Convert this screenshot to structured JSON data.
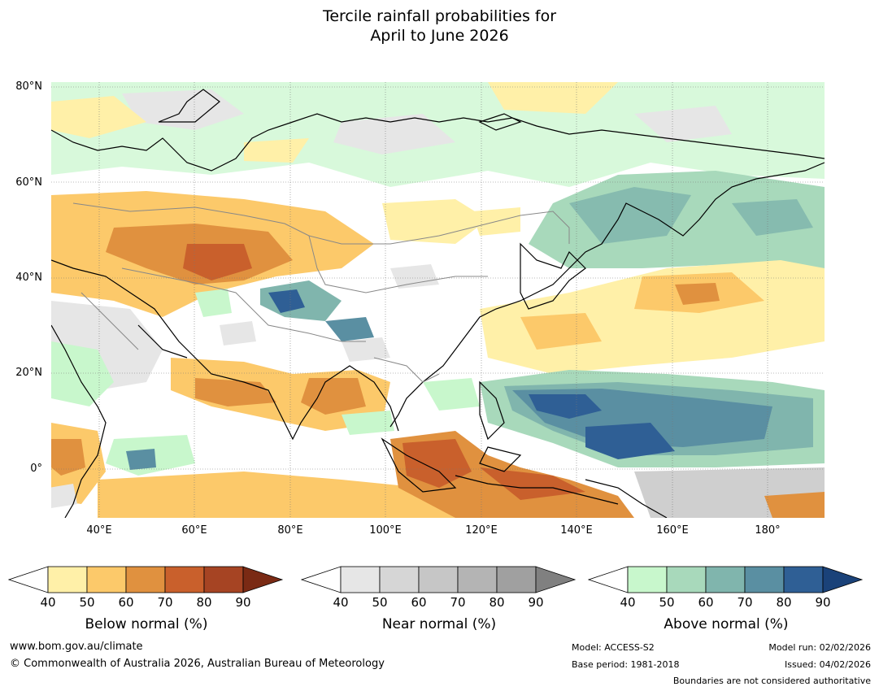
{
  "title": {
    "line1": "Tercile rainfall probabilities for",
    "line2": "April to June 2026"
  },
  "axes": {
    "lat_labels": [
      "80°N",
      "60°N",
      "40°N",
      "20°N",
      "0°"
    ],
    "lon_labels": [
      "40°E",
      "60°E",
      "80°E",
      "100°E",
      "120°E",
      "140°E",
      "160°E",
      "180°"
    ]
  },
  "colorbars": [
    {
      "title": "Below normal (%)",
      "ticks": [
        "40",
        "50",
        "60",
        "70",
        "80",
        "90"
      ],
      "colors": [
        "#fff0a8",
        "#fcc96a",
        "#e0913f",
        "#c9602c",
        "#a64423"
      ],
      "extend_color": "#7a2a14"
    },
    {
      "title": "Near normal (%)",
      "ticks": [
        "40",
        "50",
        "60",
        "70",
        "80",
        "90"
      ],
      "colors": [
        "#e6e6e6",
        "#d6d6d6",
        "#c6c6c6",
        "#b4b4b4",
        "#a0a0a0"
      ],
      "extend_color": "#808080"
    },
    {
      "title": "Above normal (%)",
      "ticks": [
        "40",
        "50",
        "60",
        "70",
        "80",
        "90"
      ],
      "colors": [
        "#c8f7cc",
        "#a8d9bb",
        "#80b5ad",
        "#5a8fa2",
        "#2f5f95"
      ],
      "extend_color": "#1a4279"
    }
  ],
  "map_colors": {
    "below1": "#fff0a8",
    "below2": "#fcc96a",
    "below3": "#e0913f",
    "below4": "#c9602c",
    "near1": "#e6e6e6",
    "near2": "#cfcfcf",
    "above1": "#c8f7cc",
    "above2": "#a8d9bb",
    "above3": "#80b5ad",
    "above4": "#5a8fa2",
    "above5": "#2f5f95"
  },
  "footer": {
    "website": "www.bom.gov.au/climate",
    "copyright": "© Commonwealth of Australia 2026, Australian Bureau of Meteorology",
    "model": "Model: ACCESS-S2",
    "base_period": "Base period: 1981-2018",
    "model_run": "Model run: 02/02/2026",
    "issued": "Issued: 04/02/2026",
    "disclaimer": "Boundaries are not considered authoritative"
  }
}
